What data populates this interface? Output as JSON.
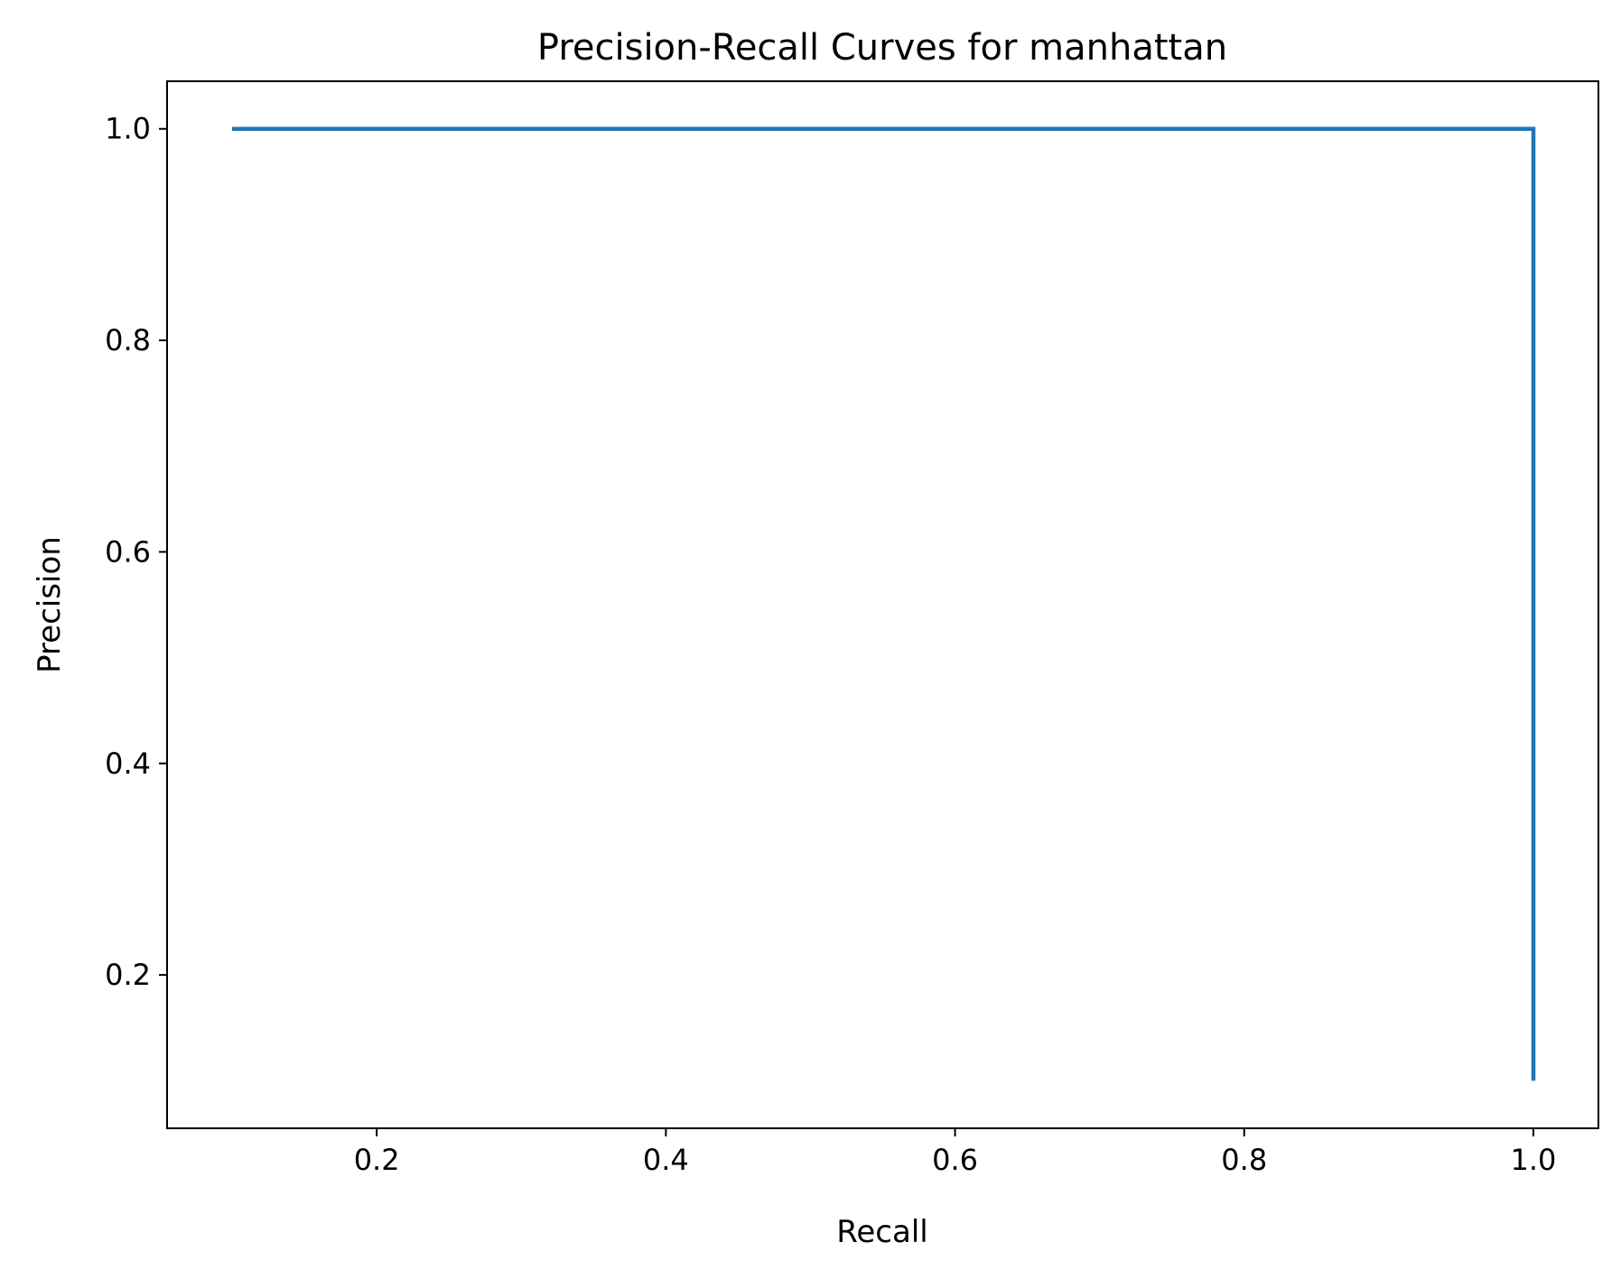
{
  "chart_data": {
    "type": "line",
    "title": "Precision-Recall Curves for manhattan",
    "xlabel": "Recall",
    "ylabel": "Precision",
    "xlim": [
      0.055,
      1.045
    ],
    "ylim": [
      0.055,
      1.045
    ],
    "xticks": [
      0.2,
      0.4,
      0.6,
      0.8,
      1.0
    ],
    "xtick_labels": [
      "0.2",
      "0.4",
      "0.6",
      "0.8",
      "1.0"
    ],
    "yticks": [
      0.2,
      0.4,
      0.6,
      0.8,
      1.0
    ],
    "ytick_labels": [
      "0.2",
      "0.4",
      "0.6",
      "0.8",
      "1.0"
    ],
    "grid": false,
    "series": [
      {
        "color": "#1f77b4",
        "x": [
          0.1,
          1.0,
          1.0
        ],
        "y": [
          1.0,
          1.0,
          0.1
        ]
      }
    ]
  }
}
